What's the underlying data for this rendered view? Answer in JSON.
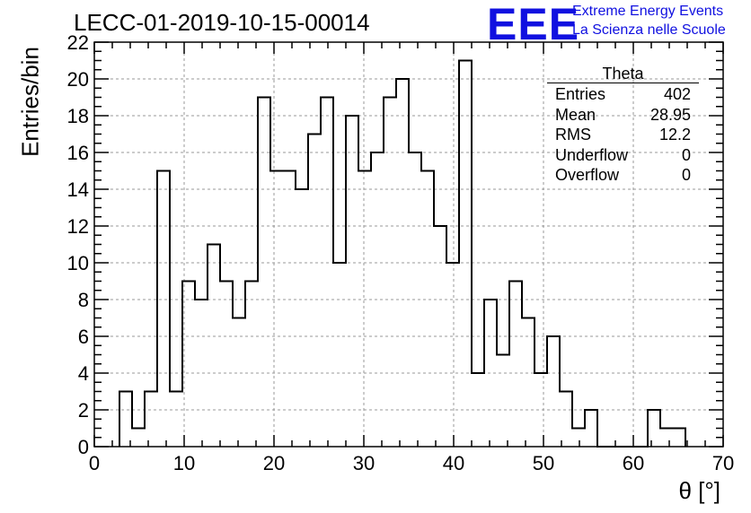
{
  "title": "LECC-01-2019-10-15-00014",
  "logo": {
    "text": "EEE",
    "line1": "Extreme Energy Events",
    "line2": "La Scienza nelle Scuole",
    "color": "#1010e0"
  },
  "stats": {
    "name": "Theta",
    "rows": [
      {
        "label": "Entries",
        "value": "402"
      },
      {
        "label": "Mean",
        "value": "28.95"
      },
      {
        "label": "RMS",
        "value": "12.2"
      },
      {
        "label": "Underflow",
        "value": "0"
      },
      {
        "label": "Overflow",
        "value": "0"
      }
    ]
  },
  "chart_data": {
    "type": "bar",
    "histogram": true,
    "title": "LECC-01-2019-10-15-00014",
    "xlabel": "θ [°]",
    "ylabel": "Entries/bin",
    "xlim": [
      0,
      70
    ],
    "ylim": [
      0,
      22
    ],
    "grid": true,
    "x_ticks": [
      0,
      10,
      20,
      30,
      40,
      50,
      60,
      70
    ],
    "y_ticks": [
      0,
      2,
      4,
      6,
      8,
      10,
      12,
      14,
      16,
      18,
      20,
      22
    ],
    "bin_width": 1.4,
    "bin_start": 2.8,
    "values": [
      3,
      1,
      3,
      15,
      3,
      9,
      8,
      11,
      9,
      7,
      9,
      19,
      15,
      15,
      14,
      17,
      19,
      10,
      18,
      15,
      16,
      19,
      20,
      16,
      15,
      12,
      10,
      21,
      4,
      8,
      5,
      9,
      7,
      4,
      6,
      3,
      1,
      2,
      0,
      0,
      0,
      0,
      2,
      1,
      1
    ]
  }
}
